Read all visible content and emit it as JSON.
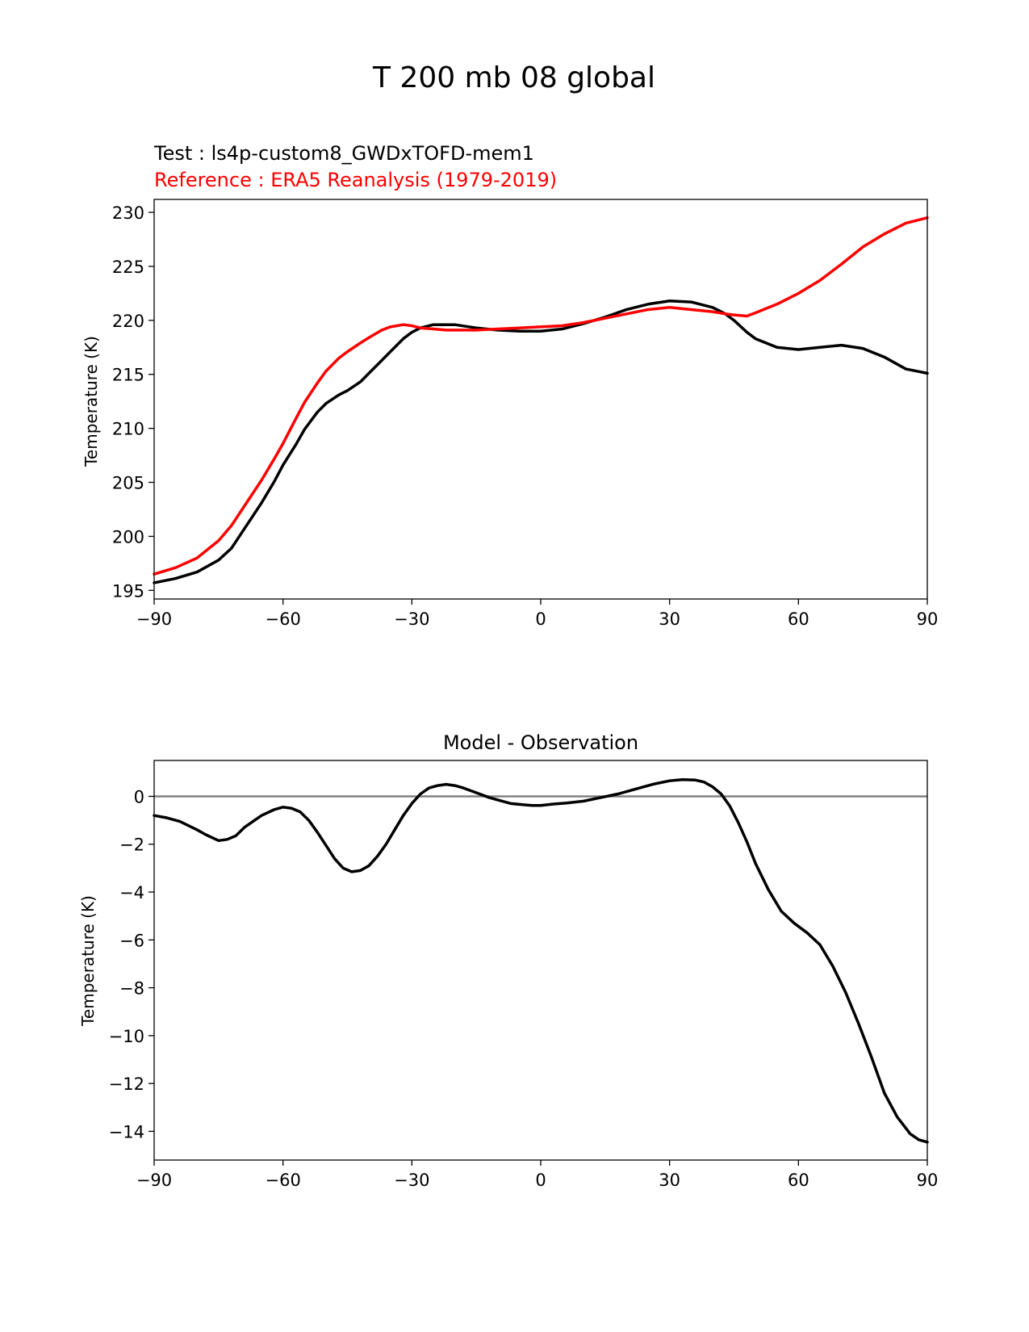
{
  "figure": {
    "title": "T 200 mb 08 global"
  },
  "chart_data": [
    {
      "type": "line",
      "test_label": "Test : ls4p-custom8_GWDxTOFD-mem1",
      "reference_label": "Reference : ERA5 Reanalysis (1979-2019)",
      "reference_color": "#ff0000",
      "test_color": "#000000",
      "xlabel": "",
      "ylabel": "Temperature (K)",
      "xlim": [
        -90,
        90
      ],
      "ylim": [
        194.2,
        231.2
      ],
      "xticks": [
        -90,
        -60,
        -30,
        0,
        30,
        60,
        90
      ],
      "xtick_labels": [
        "−90",
        "−60",
        "−30",
        "0",
        "30",
        "60",
        "90"
      ],
      "yticks": [
        195,
        200,
        205,
        210,
        215,
        220,
        225,
        230
      ],
      "ytick_labels": [
        "195",
        "200",
        "205",
        "210",
        "215",
        "220",
        "225",
        "230"
      ],
      "x": [
        -90,
        -85,
        -80,
        -75,
        -72,
        -70,
        -67,
        -65,
        -62,
        -60,
        -57,
        -55,
        -52,
        -50,
        -47,
        -45,
        -42,
        -40,
        -37,
        -35,
        -32,
        -30,
        -28,
        -25,
        -22,
        -20,
        -15,
        -10,
        -5,
        0,
        5,
        10,
        15,
        20,
        25,
        30,
        35,
        40,
        43,
        45,
        48,
        50,
        55,
        60,
        65,
        70,
        75,
        80,
        85,
        90
      ],
      "series": [
        {
          "name": "test",
          "values": [
            195.7,
            196.1,
            196.7,
            197.8,
            198.9,
            200.1,
            201.9,
            203.1,
            205.1,
            206.6,
            208.5,
            209.9,
            211.5,
            212.3,
            213.1,
            213.5,
            214.3,
            215.1,
            216.3,
            217.1,
            218.3,
            218.9,
            219.3,
            219.6,
            219.6,
            219.6,
            219.3,
            219.1,
            219.0,
            219.0,
            219.2,
            219.7,
            220.3,
            221.0,
            221.5,
            221.8,
            221.7,
            221.2,
            220.6,
            220.0,
            218.9,
            218.3,
            217.5,
            217.3,
            217.5,
            217.7,
            217.4,
            216.6,
            215.5,
            215.1
          ]
        },
        {
          "name": "reference",
          "values": [
            196.5,
            197.1,
            198.0,
            199.6,
            201.0,
            202.2,
            204.0,
            205.2,
            207.2,
            208.6,
            210.9,
            212.4,
            214.2,
            215.3,
            216.5,
            217.1,
            217.9,
            218.4,
            219.1,
            219.4,
            219.6,
            219.5,
            219.3,
            219.2,
            219.1,
            219.1,
            219.1,
            219.2,
            219.3,
            219.4,
            219.5,
            219.8,
            220.2,
            220.6,
            221.0,
            221.2,
            221.0,
            220.8,
            220.6,
            220.5,
            220.4,
            220.7,
            221.5,
            222.5,
            223.7,
            225.2,
            226.8,
            228.0,
            229.0,
            229.5
          ]
        }
      ]
    },
    {
      "type": "line",
      "title": "Model - Observation",
      "xlabel": "",
      "ylabel": "Temperature (K)",
      "xlim": [
        -90,
        90
      ],
      "ylim": [
        -15.2,
        1.5
      ],
      "xticks": [
        -90,
        -60,
        -30,
        0,
        30,
        60,
        90
      ],
      "xtick_labels": [
        "−90",
        "−60",
        "−30",
        "0",
        "30",
        "60",
        "90"
      ],
      "yticks": [
        0,
        -2,
        -4,
        -6,
        -8,
        -10,
        -12,
        -14
      ],
      "ytick_labels": [
        "0",
        "−2",
        "−4",
        "−6",
        "−8",
        "−10",
        "−12",
        "−14"
      ],
      "zero_line_color": "#808080",
      "x": [
        -90,
        -87,
        -84,
        -80,
        -78,
        -75,
        -73,
        -71,
        -69,
        -67,
        -65,
        -62,
        -60,
        -58,
        -56,
        -54,
        -52,
        -50,
        -48,
        -46,
        -44,
        -42,
        -40,
        -38,
        -36,
        -34,
        -32,
        -30,
        -28,
        -26,
        -24,
        -22,
        -20,
        -18,
        -15,
        -12,
        -10,
        -7,
        -4,
        -2,
        0,
        3,
        6,
        10,
        14,
        18,
        22,
        26,
        30,
        33,
        36,
        38,
        40,
        42,
        44,
        46,
        48,
        50,
        53,
        56,
        59,
        62,
        65,
        68,
        71,
        74,
        77,
        80,
        83,
        86,
        88,
        90
      ],
      "series": [
        {
          "name": "difference",
          "values": [
            -0.8,
            -0.9,
            -1.05,
            -1.4,
            -1.6,
            -1.85,
            -1.8,
            -1.65,
            -1.3,
            -1.05,
            -0.8,
            -0.55,
            -0.45,
            -0.5,
            -0.65,
            -1.0,
            -1.5,
            -2.05,
            -2.6,
            -3.0,
            -3.15,
            -3.1,
            -2.9,
            -2.5,
            -2.0,
            -1.4,
            -0.8,
            -0.3,
            0.1,
            0.35,
            0.45,
            0.5,
            0.45,
            0.35,
            0.15,
            -0.05,
            -0.15,
            -0.3,
            -0.35,
            -0.38,
            -0.38,
            -0.32,
            -0.28,
            -0.2,
            -0.05,
            0.1,
            0.3,
            0.5,
            0.65,
            0.7,
            0.68,
            0.6,
            0.4,
            0.1,
            -0.4,
            -1.1,
            -1.9,
            -2.8,
            -3.9,
            -4.8,
            -5.3,
            -5.7,
            -6.2,
            -7.1,
            -8.2,
            -9.5,
            -10.9,
            -12.4,
            -13.4,
            -14.1,
            -14.35,
            -14.45
          ]
        }
      ]
    }
  ]
}
